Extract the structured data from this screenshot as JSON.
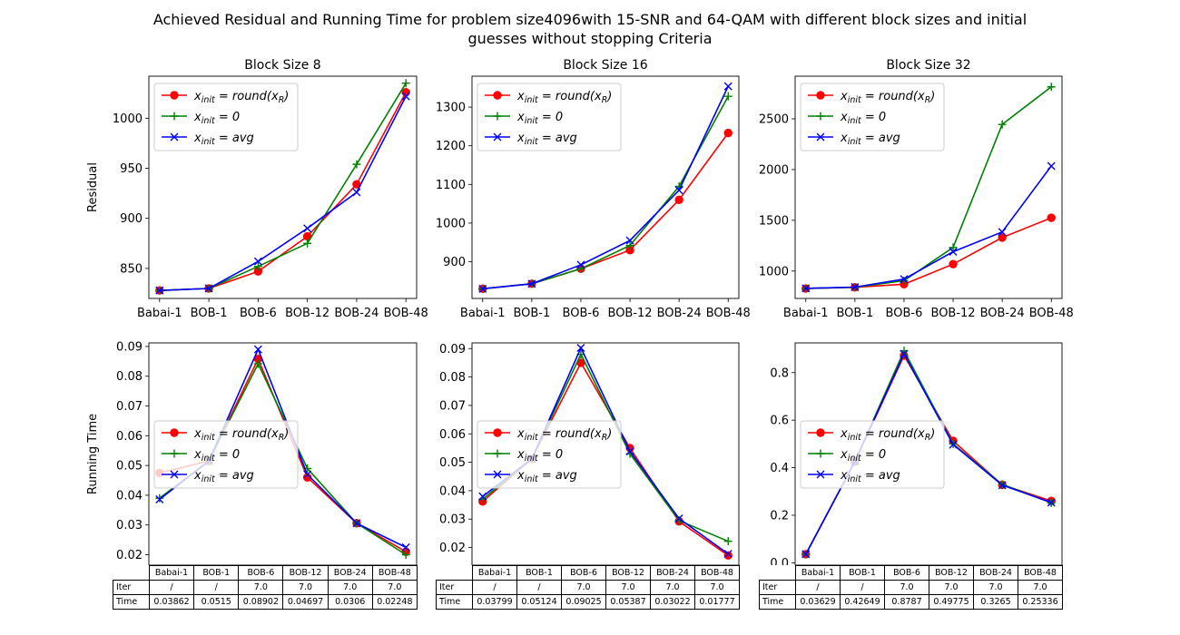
{
  "figure": {
    "suptitle_line1": "Achieved Residual and Running Time for problem size4096with  15-SNR and 64-QAM with different block sizes and initial",
    "suptitle_line2": "guesses without stopping Criteria"
  },
  "legend": [
    {
      "base": "x",
      "sub": "init",
      "rhs_text": " = round(x",
      "rhs_sub": "R",
      "rhs_end": ")",
      "color": "#ff0000",
      "marker": "circle"
    },
    {
      "base": "x",
      "sub": "init",
      "rhs_text": " = 0",
      "rhs_sub": "",
      "rhs_end": "",
      "color": "#008000",
      "marker": "plus"
    },
    {
      "base": "x",
      "sub": "init",
      "rhs_text": " = avg",
      "rhs_sub": "",
      "rhs_end": "",
      "color": "#0000ff",
      "marker": "x"
    }
  ],
  "table": {
    "row_labels": [
      "Iter",
      "Time"
    ]
  },
  "chart_data": [
    {
      "type": "line",
      "title": "Block Size 8",
      "ylabel": "Residual",
      "xlabel": "",
      "categories": [
        "Babai-1",
        "BOB-1",
        "BOB-6",
        "BOB-12",
        "BOB-24",
        "BOB-48"
      ],
      "ylim": [
        820,
        1042
      ],
      "yticks": [
        850,
        900,
        950,
        1000
      ],
      "ytick_labels": [
        "850",
        "900",
        "950",
        "1000"
      ],
      "legend_position": "upper left",
      "series": [
        {
          "values": [
            828,
            830,
            847,
            882,
            934,
            1026
          ]
        },
        {
          "values": [
            828,
            830,
            852,
            875,
            954,
            1035
          ]
        },
        {
          "values": [
            828,
            830,
            857,
            890,
            926,
            1022
          ]
        }
      ]
    },
    {
      "type": "line",
      "title": "Block Size 16",
      "ylabel": "",
      "xlabel": "",
      "categories": [
        "Babai-1",
        "BOB-1",
        "BOB-6",
        "BOB-12",
        "BOB-24",
        "BOB-48"
      ],
      "ylim": [
        805,
        1380
      ],
      "yticks": [
        900,
        1000,
        1100,
        1200,
        1300
      ],
      "ytick_labels": [
        "900",
        "1000",
        "1100",
        "1200",
        "1300"
      ],
      "legend_position": "upper left",
      "series": [
        {
          "values": [
            830,
            843,
            882,
            930,
            1060,
            1233
          ]
        },
        {
          "values": [
            830,
            843,
            882,
            942,
            1095,
            1328
          ]
        },
        {
          "values": [
            830,
            843,
            892,
            955,
            1085,
            1354
          ]
        }
      ]
    },
    {
      "type": "line",
      "title": "Block Size 32",
      "ylabel": "",
      "xlabel": "",
      "categories": [
        "Babai-1",
        "BOB-1",
        "BOB-6",
        "BOB-12",
        "BOB-24",
        "BOB-48"
      ],
      "ylim": [
        730,
        2920
      ],
      "yticks": [
        1000,
        1500,
        2000,
        2500
      ],
      "ytick_labels": [
        "1000",
        "1500",
        "2000",
        "2500"
      ],
      "legend_position": "upper left",
      "series": [
        {
          "values": [
            828,
            840,
            870,
            1068,
            1330,
            1525
          ]
        },
        {
          "values": [
            828,
            840,
            905,
            1232,
            2445,
            2815
          ]
        },
        {
          "values": [
            830,
            842,
            920,
            1190,
            1385,
            2035
          ]
        }
      ]
    },
    {
      "type": "line",
      "title": "",
      "ylabel": "Running Time",
      "xlabel": "",
      "categories": [
        "Babai-1",
        "BOB-1",
        "BOB-6",
        "BOB-12",
        "BOB-24",
        "BOB-48"
      ],
      "ylim": [
        0.0165,
        0.0912
      ],
      "yticks": [
        0.02,
        0.03,
        0.04,
        0.05,
        0.06,
        0.07,
        0.08,
        0.09
      ],
      "ytick_labels": [
        "0.02",
        "0.03",
        "0.04",
        "0.05",
        "0.06",
        "0.07",
        "0.08",
        "0.09"
      ],
      "legend_position": "center left",
      "series": [
        {
          "values": [
            0.0475,
            0.0515,
            0.0858,
            0.046,
            0.0306,
            0.021
          ]
        },
        {
          "values": [
            0.039,
            0.0515,
            0.0842,
            0.049,
            0.0306,
            0.02
          ]
        },
        {
          "values": [
            0.03862,
            0.0515,
            0.08902,
            0.04697,
            0.0306,
            0.02248
          ]
        }
      ],
      "table": {
        "columns": [
          "Babai-1",
          "BOB-1",
          "BOB-6",
          "BOB-12",
          "BOB-24",
          "BOB-48"
        ],
        "iter": [
          "/",
          "/",
          "7.0",
          "7.0",
          "7.0",
          "7.0"
        ],
        "time": [
          "0.03862",
          "0.0515",
          "0.08902",
          "0.04697",
          "0.0306",
          "0.02248"
        ]
      }
    },
    {
      "type": "line",
      "title": "",
      "ylabel": "",
      "xlabel": "",
      "categories": [
        "Babai-1",
        "BOB-1",
        "BOB-6",
        "BOB-12",
        "BOB-24",
        "BOB-48"
      ],
      "ylim": [
        0.0138,
        0.092
      ],
      "yticks": [
        0.02,
        0.03,
        0.04,
        0.05,
        0.06,
        0.07,
        0.08,
        0.09
      ],
      "ytick_labels": [
        "0.02",
        "0.03",
        "0.04",
        "0.05",
        "0.06",
        "0.07",
        "0.08",
        "0.09"
      ],
      "legend_position": "center left",
      "series": [
        {
          "values": [
            0.0362,
            0.0512,
            0.085,
            0.055,
            0.0292,
            0.0172
          ]
        },
        {
          "values": [
            0.037,
            0.0512,
            0.088,
            0.053,
            0.0295,
            0.0222
          ]
        },
        {
          "values": [
            0.03799,
            0.05124,
            0.09025,
            0.05387,
            0.03022,
            0.01777
          ]
        }
      ],
      "table": {
        "columns": [
          "Babai-1",
          "BOB-1",
          "BOB-6",
          "BOB-12",
          "BOB-24",
          "BOB-48"
        ],
        "iter": [
          "/",
          "/",
          "7.0",
          "7.0",
          "7.0",
          "7.0"
        ],
        "time": [
          "0.03799",
          "0.05124",
          "0.09025",
          "0.05387",
          "0.03022",
          "0.01777"
        ]
      }
    },
    {
      "type": "line",
      "title": "",
      "ylabel": "",
      "xlabel": "",
      "categories": [
        "Babai-1",
        "BOB-1",
        "BOB-6",
        "BOB-12",
        "BOB-24",
        "BOB-48"
      ],
      "ylim": [
        -0.01,
        0.925
      ],
      "yticks": [
        0.0,
        0.2,
        0.4,
        0.6,
        0.8
      ],
      "ytick_labels": [
        "0.0",
        "0.2",
        "0.4",
        "0.6",
        "0.8"
      ],
      "legend_position": "center left",
      "series": [
        {
          "values": [
            0.036,
            0.4265,
            0.872,
            0.513,
            0.328,
            0.26
          ]
        },
        {
          "values": [
            0.036,
            0.4265,
            0.892,
            0.5,
            0.33,
            0.252
          ]
        },
        {
          "values": [
            0.03629,
            0.42649,
            0.8787,
            0.49775,
            0.3265,
            0.25336
          ]
        }
      ],
      "table": {
        "columns": [
          "Babai-1",
          "BOB-1",
          "BOB-6",
          "BOB-12",
          "BOB-24",
          "BOB-48"
        ],
        "iter": [
          "/",
          "/",
          "7.0",
          "7.0",
          "7.0",
          "7.0"
        ],
        "time": [
          "0.03629",
          "0.42649",
          "0.8787",
          "0.49775",
          "0.3265",
          "0.25336"
        ]
      }
    }
  ]
}
